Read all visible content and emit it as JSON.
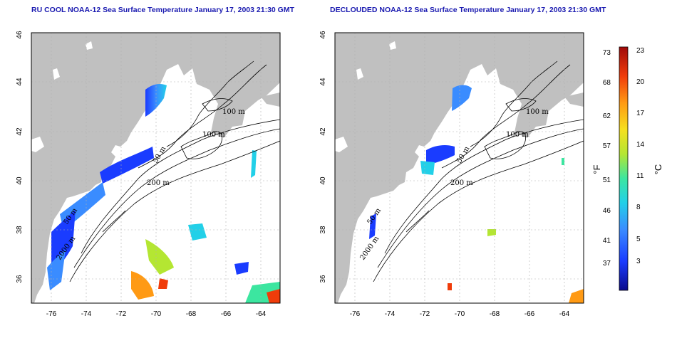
{
  "panels": [
    {
      "title": "RU COOL NOAA-12 Sea Surface Temperature January 17, 2003 21:30 GMT"
    },
    {
      "title": "DECLOUDED NOAA-12 Sea Surface Temperature January 17, 2003 21:30 GMT"
    }
  ],
  "map": {
    "lon_ticks": [
      "-76",
      "-74",
      "-72",
      "-70",
      "-68",
      "-66",
      "-64"
    ],
    "lat_ticks": [
      "36",
      "38",
      "40",
      "42",
      "44",
      "46"
    ],
    "lon_range": [
      -77.2,
      -63.0
    ],
    "lat_range": [
      35.0,
      46.0
    ],
    "contour_labels": [
      "100 m",
      "100 m",
      "50 m",
      "200 m",
      "50 m",
      "2000 m"
    ],
    "land_color": "#c0c0c0",
    "water_color": "#ffffff"
  },
  "colorbar": {
    "fahrenheit_ticks": [
      "73",
      "68",
      "62",
      "57",
      "51",
      "46",
      "41",
      "37"
    ],
    "celsius_ticks": [
      "23",
      "20",
      "17",
      "14",
      "11",
      "8",
      "5",
      "3"
    ],
    "fahrenheit_unit": "°F",
    "celsius_unit": "°C",
    "colors": [
      "#0a0a8c",
      "#1a3cff",
      "#3a8cff",
      "#22d0e8",
      "#3ce6a0",
      "#b4e632",
      "#f5e01e",
      "#ff9a14",
      "#f03c0a",
      "#a00a0a"
    ]
  }
}
